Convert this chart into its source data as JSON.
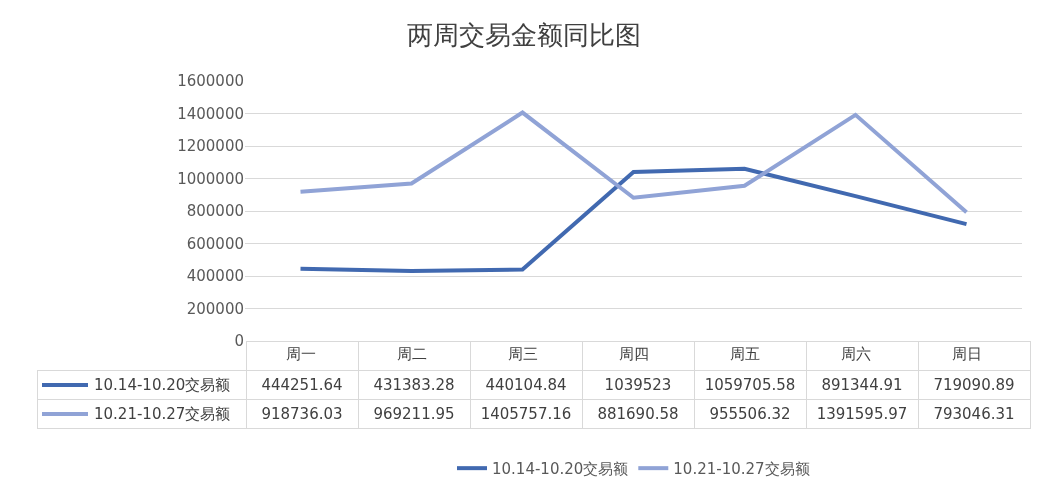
{
  "chart_data": {
    "type": "line",
    "title": "两周交易金额同比图",
    "categories": [
      "周一",
      "周二",
      "周三",
      "周四",
      "周五",
      "周六",
      "周日"
    ],
    "series": [
      {
        "name": "10.14-10.20交易额",
        "color": "#4169b0",
        "values": [
          444251.64,
          431383.28,
          440104.84,
          1039523,
          1059705.58,
          891344.91,
          719090.89
        ]
      },
      {
        "name": "10.21-10.27交易额",
        "color": "#90a3d6",
        "values": [
          918736.03,
          969211.95,
          1405757.16,
          881690.58,
          955506.32,
          1391595.97,
          793046.31
        ]
      }
    ],
    "ylim": [
      0,
      1600000
    ],
    "yticks": [
      0,
      200000,
      400000,
      600000,
      800000,
      1000000,
      1200000,
      1400000,
      1600000
    ],
    "grid": "y",
    "legend": "bottom",
    "data_labels": true
  }
}
